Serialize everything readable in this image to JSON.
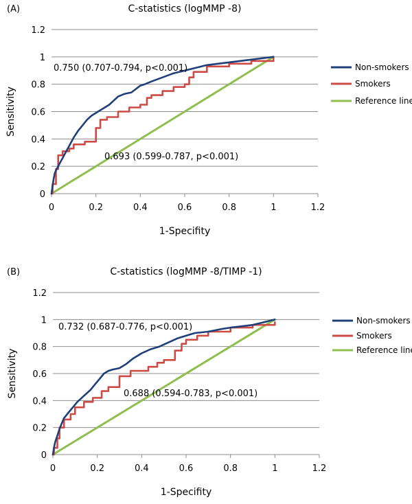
{
  "chart_data": [
    {
      "type": "line",
      "panel_label": "(A)",
      "title": "C-statistics (logMMP -8)",
      "xlabel": "1-Specifity",
      "ylabel": "Sensitivity",
      "xlim": [
        0,
        1.2
      ],
      "ylim": [
        0,
        1.2
      ],
      "xticks": [
        "0",
        "0.2",
        "0.4",
        "0.6",
        "0.8",
        "1",
        "1.2"
      ],
      "yticks": [
        "0",
        "0.2",
        "0.4",
        "0.6",
        "0.8",
        "1",
        "1.2"
      ],
      "grid": "horizontal",
      "legend_position": "right",
      "annotations": [
        "0.750 (0.707-0.794, p<0.001)",
        "0.693 (0.599-0.787, p<0.001)"
      ],
      "series": [
        {
          "name": "Non-smokers",
          "color": "#1f3f7a",
          "step": false,
          "x": [
            0,
            0.005,
            0.01,
            0.015,
            0.02,
            0.03,
            0.04,
            0.05,
            0.06,
            0.07,
            0.08,
            0.1,
            0.12,
            0.14,
            0.16,
            0.18,
            0.2,
            0.22,
            0.24,
            0.26,
            0.28,
            0.3,
            0.33,
            0.36,
            0.4,
            0.42,
            0.45,
            0.5,
            0.55,
            0.6,
            0.65,
            0.7,
            0.8,
            0.9,
            1.0
          ],
          "y": [
            0,
            0.06,
            0.11,
            0.15,
            0.17,
            0.2,
            0.23,
            0.26,
            0.29,
            0.32,
            0.35,
            0.41,
            0.46,
            0.5,
            0.54,
            0.57,
            0.59,
            0.61,
            0.63,
            0.65,
            0.68,
            0.71,
            0.73,
            0.74,
            0.79,
            0.8,
            0.82,
            0.85,
            0.88,
            0.9,
            0.92,
            0.94,
            0.96,
            0.98,
            1.0
          ]
        },
        {
          "name": "Smokers",
          "color": "#cc4b44",
          "step": true,
          "x": [
            0,
            0.005,
            0.02,
            0.03,
            0.05,
            0.08,
            0.1,
            0.15,
            0.2,
            0.22,
            0.25,
            0.3,
            0.35,
            0.4,
            0.43,
            0.45,
            0.5,
            0.55,
            0.6,
            0.62,
            0.64,
            0.7,
            0.8,
            0.9,
            1.0
          ],
          "y": [
            0,
            0.07,
            0.18,
            0.28,
            0.31,
            0.33,
            0.36,
            0.38,
            0.48,
            0.54,
            0.56,
            0.6,
            0.63,
            0.65,
            0.7,
            0.72,
            0.75,
            0.78,
            0.8,
            0.85,
            0.89,
            0.93,
            0.95,
            0.97,
            0.99
          ]
        },
        {
          "name": "Reference line",
          "color": "#8fbe4e",
          "step": false,
          "x": [
            0,
            1
          ],
          "y": [
            0,
            1
          ]
        }
      ]
    },
    {
      "type": "line",
      "panel_label": "(B)",
      "title": "C-statistics (logMMP -8/TIMP -1)",
      "xlabel": "1-Specifity",
      "ylabel": "Sensitivity",
      "xlim": [
        0,
        1.2
      ],
      "ylim": [
        0,
        1.2
      ],
      "xticks": [
        "0",
        "0.2",
        "0.4",
        "0.6",
        "0.8",
        "1",
        "1.2"
      ],
      "yticks": [
        "0",
        "0.2",
        "0.4",
        "0.6",
        "0.8",
        "1",
        "1.2"
      ],
      "grid": "horizontal",
      "legend_position": "right",
      "annotations": [
        "0.732 (0.687-0.776, p<0.001)",
        "0.688 (0.594-0.783, p<0.001)"
      ],
      "series": [
        {
          "name": "Non-smokers",
          "color": "#1f3f7a",
          "step": false,
          "x": [
            0,
            0.005,
            0.01,
            0.02,
            0.03,
            0.04,
            0.05,
            0.07,
            0.09,
            0.11,
            0.13,
            0.15,
            0.17,
            0.19,
            0.21,
            0.23,
            0.25,
            0.27,
            0.3,
            0.33,
            0.36,
            0.4,
            0.44,
            0.48,
            0.52,
            0.56,
            0.6,
            0.64,
            0.7,
            0.76,
            0.8,
            0.85,
            0.9,
            0.95,
            1.0
          ],
          "y": [
            0,
            0.05,
            0.09,
            0.14,
            0.19,
            0.23,
            0.27,
            0.31,
            0.35,
            0.39,
            0.42,
            0.45,
            0.48,
            0.52,
            0.56,
            0.6,
            0.62,
            0.63,
            0.64,
            0.67,
            0.71,
            0.75,
            0.78,
            0.8,
            0.83,
            0.86,
            0.88,
            0.9,
            0.91,
            0.93,
            0.94,
            0.95,
            0.96,
            0.98,
            1.0
          ]
        },
        {
          "name": "Smokers",
          "color": "#cc4b44",
          "step": true,
          "x": [
            0,
            0.005,
            0.02,
            0.03,
            0.05,
            0.08,
            0.1,
            0.14,
            0.18,
            0.22,
            0.25,
            0.3,
            0.35,
            0.43,
            0.47,
            0.5,
            0.55,
            0.58,
            0.6,
            0.65,
            0.7,
            0.8,
            0.9,
            1.0
          ],
          "y": [
            0,
            0.05,
            0.12,
            0.2,
            0.26,
            0.3,
            0.35,
            0.39,
            0.42,
            0.47,
            0.5,
            0.58,
            0.62,
            0.65,
            0.68,
            0.7,
            0.77,
            0.82,
            0.85,
            0.88,
            0.91,
            0.94,
            0.96,
            0.98
          ]
        },
        {
          "name": "Reference line",
          "color": "#8fbe4e",
          "step": false,
          "x": [
            0,
            1
          ],
          "y": [
            0,
            1
          ]
        }
      ]
    }
  ]
}
